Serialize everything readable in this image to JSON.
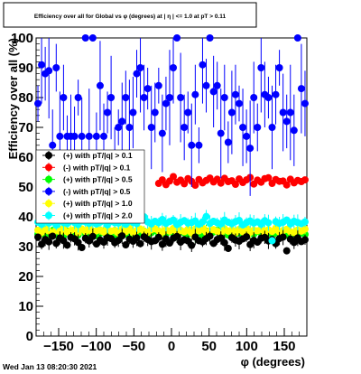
{
  "chart_data": {
    "type": "scatter",
    "title": "Efficiency over all for Global vs φ (degrees) at | η | <= 1.0 at pT > 0.11",
    "xlabel": "φ (degrees)",
    "ylabel": "Efficiency over all (%)",
    "xlim": [
      -180,
      180
    ],
    "ylim": [
      0,
      100
    ],
    "x_ticks": [
      -150,
      -100,
      -50,
      0,
      50,
      100,
      150
    ],
    "y_ticks": [
      0,
      10,
      20,
      30,
      40,
      50,
      60,
      70,
      80,
      90,
      100
    ],
    "grid": false,
    "legend_position": "left, middle",
    "timestamp": "Wed Jan 13 08:20:30 2021",
    "series": [
      {
        "name": "(+) with pT/|q| > 0.1",
        "color": "#000000",
        "mean": 32,
        "values": [
          33.2,
          30.8,
          32.4,
          31.6,
          33.5,
          31.1,
          32.9,
          32.0,
          30.5,
          33.1,
          32.6,
          31.4,
          29.7,
          32.8,
          31.9,
          33.4,
          30.9,
          32.2,
          31.5,
          33.0,
          32.7,
          31.3,
          32.1,
          33.6,
          30.6,
          32.5,
          31.8,
          32.9,
          31.0,
          33.3,
          32.4,
          31.7,
          32.0,
          33.1,
          30.8,
          32.6,
          31.2,
          32.8,
          33.4,
          31.5,
          32.3,
          31.9,
          30.4,
          33.2,
          32.0,
          31.6,
          32.7,
          33.5,
          31.1,
          32.4,
          32.9,
          31.3,
          29.4,
          33.0,
          32.2,
          31.8,
          32.6,
          33.3,
          30.7,
          32.1,
          31.5,
          32.8,
          33.1,
          31.9,
          32.4,
          31.0,
          32.7,
          33.2,
          28.6,
          32.5,
          31.4,
          32.9,
          31.7,
          32.3
        ]
      },
      {
        "name": "(-) with pT/|q| > 0.1",
        "color": "#ff0000",
        "mean": 52,
        "values": [
          null,
          null,
          null,
          null,
          null,
          null,
          null,
          null,
          null,
          null,
          null,
          null,
          null,
          null,
          null,
          null,
          null,
          null,
          null,
          null,
          null,
          null,
          null,
          null,
          null,
          null,
          null,
          null,
          null,
          null,
          null,
          null,
          null,
          51.2,
          52.4,
          50.8,
          52.0,
          53.5,
          51.6,
          52.3,
          51.1,
          52.8,
          51.9,
          50.6,
          52.5,
          51.4,
          52.2,
          53.0,
          51.7,
          52.6,
          51.3,
          52.9,
          51.8,
          52.1,
          50.9,
          52.7,
          51.5,
          52.4,
          53.2,
          51.0,
          52.3,
          51.6,
          52.8,
          53.1,
          51.2,
          52.5,
          51.9,
          52.0,
          50.7,
          52.6,
          51.4,
          52.2,
          51.8,
          52.4
        ]
      },
      {
        "name": "(+) with pT/|q| > 0.5",
        "color": "#00ff00",
        "mean": 34.5,
        "values": [
          34.2,
          35.0,
          33.8,
          34.6,
          35.4,
          34.0,
          34.9,
          33.6,
          35.2,
          34.4,
          34.8,
          33.9,
          35.6,
          34.3,
          34.7,
          35.1,
          33.7,
          34.5,
          35.3,
          34.1,
          34.9,
          33.8,
          35.0,
          34.6,
          34.2,
          35.5,
          33.9,
          34.8,
          34.4,
          35.2,
          34.0,
          34.7,
          35.4,
          33.6,
          34.9,
          34.3,
          35.1,
          34.5,
          33.8,
          35.0,
          34.6,
          34.2,
          35.3,
          34.0,
          34.8,
          33.7,
          35.2,
          34.4,
          34.9,
          35.5,
          34.1,
          34.7,
          33.9,
          35.0,
          34.3,
          34.6,
          35.4,
          33.8,
          34.9,
          34.2,
          35.1,
          34.5,
          33.6,
          35.3,
          34.0,
          34.8,
          34.4,
          35.2,
          33.9,
          34.7,
          34.3,
          35.0,
          34.6,
          34.1
        ]
      },
      {
        "name": "(-) with pT/|q| > 0.5",
        "color": "#0000ff",
        "mean": 78,
        "values": [
          78,
          91,
          88,
          89,
          64,
          90,
          67,
          80,
          67,
          67,
          67,
          80,
          67,
          100,
          67,
          100,
          67,
          84,
          67,
          75,
          80,
          60,
          70,
          72,
          80,
          70,
          75,
          88,
          90,
          80,
          83,
          70,
          75,
          84,
          68,
          78,
          80,
          90,
          100,
          80,
          70,
          75,
          64,
          81,
          64,
          91,
          84,
          100,
          82,
          84,
          68,
          80,
          65,
          75,
          81,
          78,
          70,
          67,
          63,
          80,
          70,
          90,
          81,
          80,
          70,
          81,
          90,
          75,
          72,
          75,
          69,
          100,
          83,
          78
        ]
      },
      {
        "name": "(+) with pT/|q| > 1.0",
        "color": "#ffff00",
        "mean": 35,
        "values": [
          35.5,
          34.8,
          36.0,
          35.2,
          34.6,
          35.8,
          35.0,
          36.2,
          34.9,
          35.4,
          35.7,
          34.7,
          35.9,
          35.1,
          36.1,
          34.8,
          35.3,
          35.6,
          34.9,
          36.0,
          35.2,
          35.5,
          34.6,
          35.8,
          35.0,
          36.2,
          34.7,
          35.4,
          35.9,
          35.1,
          34.8,
          35.7,
          36.0,
          35.3,
          34.9,
          35.6,
          35.2,
          36.1,
          34.7,
          35.5,
          35.0,
          35.8,
          34.6,
          35.9,
          35.3,
          36.2,
          34.8,
          35.4,
          35.7,
          35.1,
          34.9,
          36.0,
          35.2,
          35.6,
          34.7,
          35.8,
          35.0,
          36.1,
          34.8,
          35.5,
          35.3,
          35.9,
          34.6,
          35.7,
          35.1,
          36.2,
          34.9,
          35.4,
          35.8,
          35.0,
          34.7,
          35.6,
          35.2,
          35.9
        ]
      },
      {
        "name": "(+) with pT/|q| > 2.0",
        "color": "#00ffff",
        "mean": 38,
        "values": [
          38.2,
          37.5,
          38.8,
          37.9,
          38.4,
          37.2,
          38.6,
          38.0,
          37.7,
          38.9,
          38.1,
          37.4,
          38.5,
          38.3,
          37.8,
          39.0,
          37.6,
          38.2,
          38.7,
          37.3,
          38.4,
          38.0,
          37.9,
          38.6,
          37.5,
          38.8,
          38.1,
          37.7,
          39.2,
          40.0,
          38.3,
          37.6,
          38.5,
          38.0,
          39.1,
          37.8,
          38.4,
          38.9,
          37.4,
          38.2,
          38.7,
          37.9,
          38.1,
          38.6,
          37.5,
          38.3,
          40.1,
          37.8,
          38.5,
          38.0,
          37.6,
          38.9,
          38.2,
          37.7,
          38.4,
          38.8,
          37.3,
          38.1,
          38.6,
          37.9,
          38.3,
          37.5,
          38.7,
          38.0,
          32.0,
          38.4,
          37.8,
          38.2,
          38.9,
          37.6,
          38.5,
          38.1,
          37.7,
          38.3
        ]
      }
    ]
  }
}
